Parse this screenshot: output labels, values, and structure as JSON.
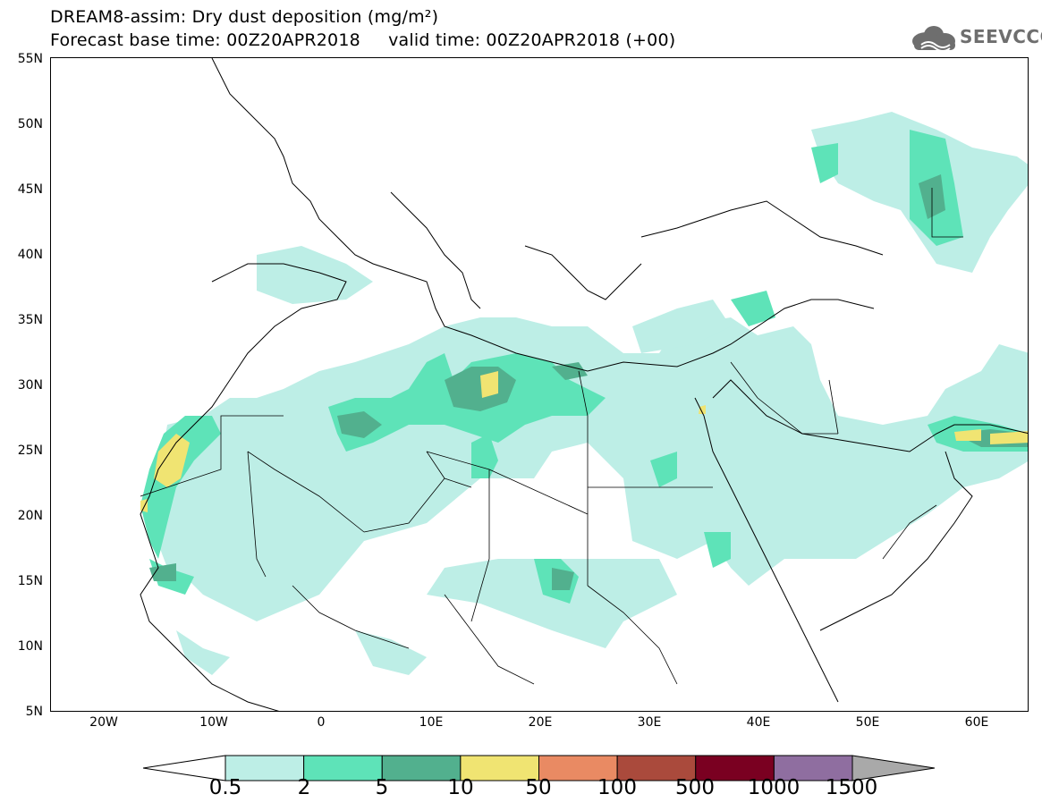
{
  "title": {
    "line1": "DREAM8-assim: Dry dust deposition (mg/m²)",
    "line2": "Forecast base time: 00Z20APR2018     valid time: 00Z20APR2018 (+00)"
  },
  "logo": {
    "text": "SEEVCCC",
    "icon": "cloud-icon"
  },
  "map": {
    "lat_labels": [
      "55N",
      "50N",
      "45N",
      "40N",
      "35N",
      "30N",
      "25N",
      "20N",
      "15N",
      "10N",
      "5N"
    ],
    "lon_labels": [
      "20W",
      "10W",
      "0",
      "10E",
      "20E",
      "30E",
      "40E",
      "50E",
      "60E"
    ],
    "colors": {
      "land_outline": "#000000",
      "level_1": "#bdeee6",
      "level_2": "#5ee3b8",
      "level_3": "#52b08e",
      "level_4": "#f0e472",
      "level_5": "#e98a63",
      "level_6": "#aa4a3c",
      "level_7": "#7a0021",
      "level_8": "#8f6ea0",
      "level_9": "#a9a9a9"
    }
  },
  "colorbar": {
    "labels": [
      "0.5",
      "2",
      "5",
      "10",
      "50",
      "100",
      "500",
      "1000",
      "1500"
    ],
    "colors": [
      "#bdeee6",
      "#5ee3b8",
      "#52b08e",
      "#f0e472",
      "#e98a63",
      "#aa4a3c",
      "#7a0021",
      "#8f6ea0"
    ],
    "over_color": "#a9a9a9",
    "under_color": "#ffffff"
  }
}
